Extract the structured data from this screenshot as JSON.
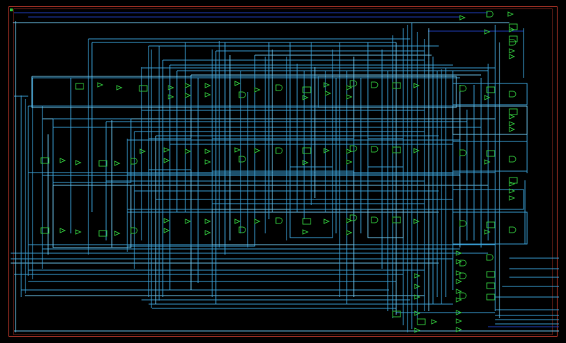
{
  "colors": {
    "background": "#000000",
    "frame": "#c0392b",
    "frame_inner": "#8a2a20",
    "wire": "#3aa0d6",
    "wire_bright": "#6cc4ec",
    "net_dark": "#1f3fbf",
    "cell": "#2fbf3a",
    "marker": "#2fbf3a"
  },
  "viewer": {
    "tool_name": "netlist-schematic-viewer",
    "cell_icon": "logic-cell-icon"
  }
}
